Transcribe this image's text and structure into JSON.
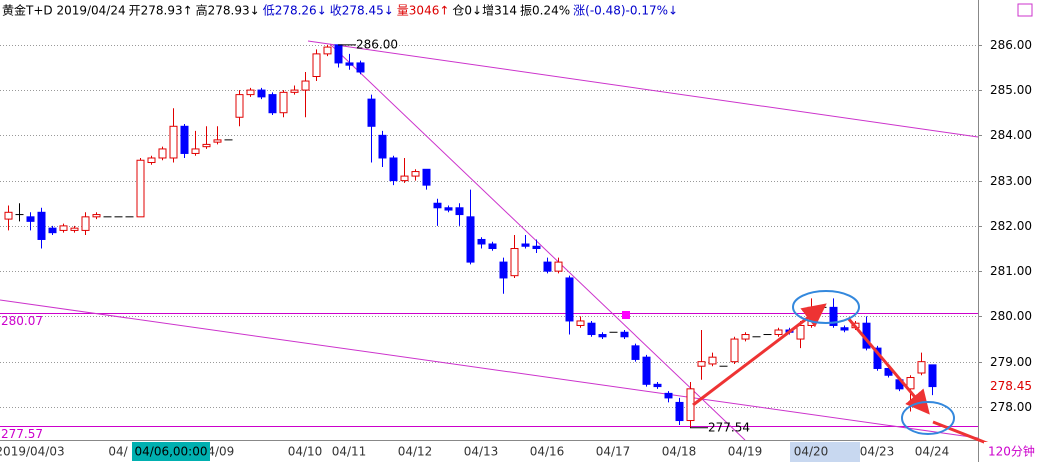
{
  "chart_data": {
    "type": "candlestick",
    "header": [
      {
        "text": "黄金T+D 2019/04/24",
        "color": "#000000"
      },
      {
        "text": "开278.93↑",
        "color": "#000000"
      },
      {
        "text": "高278.93↓",
        "color": "#000000"
      },
      {
        "text": "低278.26↓",
        "color": "#0000cc"
      },
      {
        "text": "收278.45↓",
        "color": "#0000cc"
      },
      {
        "text": "量3046↑",
        "color": "#dd0000"
      },
      {
        "text": "仓0↓增314",
        "color": "#000000"
      },
      {
        "text": "振0.24%",
        "color": "#000000"
      },
      {
        "text": "涨(-0.48)-0.17%↓",
        "color": "#0000cc"
      }
    ],
    "categories": [
      null,
      null,
      "2019/04/03",
      null,
      null,
      null,
      null,
      null,
      null,
      null,
      "04/",
      null,
      null,
      null,
      null,
      null,
      null,
      null,
      null,
      "04/09",
      null,
      null,
      null,
      null,
      null,
      null,
      null,
      "04/10",
      null,
      null,
      null,
      "04/11",
      null,
      null,
      null,
      null,
      null,
      "04/12",
      null,
      null,
      null,
      null,
      null,
      "04/13",
      null,
      null,
      null,
      null,
      null,
      "04/16",
      null,
      null,
      null,
      null,
      null,
      "04/17",
      null,
      null,
      null,
      null,
      null,
      "04/18",
      null,
      null,
      null,
      null,
      null,
      "04/19",
      null,
      null,
      null,
      null,
      null,
      "04/20",
      null,
      null,
      null,
      null,
      null,
      "04/23",
      null,
      null,
      null,
      null,
      "04/24"
    ],
    "open": [
      282.15,
      282.25,
      282.2,
      282.3,
      281.95,
      281.9,
      281.9,
      281.9,
      282.2,
      282.2,
      282.2,
      282.2,
      282.2,
      283.4,
      283.5,
      283.5,
      284.2,
      283.6,
      283.75,
      283.85,
      283.9,
      284.4,
      284.9,
      285.0,
      284.9,
      284.5,
      284.95,
      285.0,
      285.3,
      285.8,
      286.0,
      285.6,
      285.6,
      284.8,
      284.0,
      283.5,
      283.0,
      283.1,
      283.25,
      282.5,
      282.4,
      282.4,
      282.2,
      281.7,
      281.6,
      281.2,
      280.9,
      281.6,
      281.55,
      281.2,
      281.0,
      280.85,
      279.8,
      279.85,
      279.6,
      279.65,
      279.65,
      279.35,
      279.1,
      278.5,
      278.3,
      278.1,
      277.7,
      278.9,
      278.95,
      278.9,
      279.0,
      279.5,
      279.55,
      279.6,
      279.6,
      279.7,
      279.5,
      279.8,
      280.2,
      280.2,
      279.75,
      279.75,
      279.85,
      279.3,
      278.85,
      278.6,
      278.4,
      278.75,
      278.93
    ],
    "high": [
      282.45,
      282.5,
      282.3,
      282.4,
      282.0,
      282.05,
      282.0,
      282.3,
      282.3,
      282.2,
      282.2,
      282.2,
      283.5,
      283.55,
      283.75,
      284.6,
      284.25,
      284.1,
      284.2,
      284.2,
      283.9,
      285.0,
      285.05,
      285.05,
      284.95,
      285.0,
      285.1,
      285.4,
      285.9,
      286.0,
      286.0,
      285.8,
      285.65,
      284.9,
      284.1,
      283.55,
      283.5,
      283.25,
      283.25,
      282.6,
      282.45,
      282.5,
      282.8,
      281.75,
      281.65,
      281.3,
      281.8,
      281.8,
      281.7,
      281.3,
      281.3,
      280.9,
      280.0,
      279.9,
      279.65,
      279.65,
      279.7,
      279.4,
      279.15,
      278.55,
      278.35,
      278.2,
      278.55,
      279.7,
      279.2,
      278.9,
      279.55,
      279.65,
      279.55,
      279.6,
      279.75,
      279.75,
      279.9,
      280.4,
      280.2,
      280.4,
      279.8,
      279.9,
      280.0,
      279.35,
      278.9,
      278.65,
      278.7,
      279.2,
      278.93
    ],
    "low": [
      281.9,
      282.1,
      281.9,
      281.5,
      281.8,
      281.85,
      281.85,
      281.8,
      282.15,
      282.2,
      282.2,
      282.2,
      282.2,
      283.35,
      283.45,
      283.4,
      283.5,
      283.55,
      283.7,
      283.8,
      283.9,
      284.2,
      284.85,
      284.8,
      284.45,
      284.4,
      284.9,
      284.4,
      285.2,
      285.75,
      285.5,
      285.45,
      285.35,
      283.4,
      283.3,
      282.9,
      282.95,
      283.0,
      282.8,
      282.0,
      282.3,
      282.0,
      281.15,
      281.5,
      281.45,
      280.5,
      280.85,
      281.5,
      281.4,
      280.95,
      280.95,
      279.6,
      279.75,
      279.55,
      279.5,
      279.65,
      279.5,
      279.0,
      278.45,
      278.4,
      278.1,
      277.6,
      277.54,
      278.6,
      278.9,
      278.9,
      278.95,
      279.45,
      279.55,
      279.6,
      279.55,
      279.6,
      279.3,
      279.75,
      280.2,
      279.75,
      279.65,
      279.7,
      279.25,
      278.8,
      278.65,
      278.35,
      277.9,
      278.7,
      278.26
    ],
    "close": [
      282.3,
      282.25,
      282.1,
      281.7,
      281.85,
      282.0,
      281.95,
      282.2,
      282.25,
      282.2,
      282.2,
      282.2,
      283.45,
      283.5,
      283.7,
      284.2,
      283.6,
      283.7,
      283.8,
      283.9,
      283.9,
      284.9,
      285.0,
      284.85,
      284.5,
      284.95,
      285.0,
      285.2,
      285.8,
      285.95,
      285.6,
      285.55,
      285.4,
      284.2,
      283.5,
      283.0,
      283.1,
      283.2,
      282.9,
      282.4,
      282.35,
      282.25,
      281.2,
      281.6,
      281.5,
      280.85,
      281.5,
      281.55,
      281.5,
      281.0,
      281.2,
      279.9,
      279.9,
      279.6,
      279.55,
      279.65,
      279.55,
      279.05,
      278.5,
      278.45,
      278.2,
      277.7,
      278.4,
      279.0,
      279.1,
      278.9,
      279.5,
      279.6,
      279.55,
      279.6,
      279.7,
      279.65,
      279.8,
      280.2,
      280.2,
      279.8,
      279.7,
      279.85,
      279.3,
      278.85,
      278.7,
      278.4,
      278.65,
      279.0,
      278.45
    ],
    "up_color": "#e00000",
    "down_color": "#0000ff",
    "flat_color": "#000000",
    "ylim": [
      277.27,
      286.99
    ],
    "yticks": [
      {
        "value": 278,
        "label": "278.00"
      },
      {
        "value": 279,
        "label": "279.00"
      },
      {
        "value": 280,
        "label": "280.00"
      },
      {
        "value": 281,
        "label": "281.00"
      },
      {
        "value": 282,
        "label": "282.00"
      },
      {
        "value": 283,
        "label": "283.00"
      },
      {
        "value": 284,
        "label": "284.00"
      },
      {
        "value": 285,
        "label": "285.00"
      },
      {
        "value": 286,
        "label": "286.00"
      }
    ],
    "grid": true,
    "hlines": [
      280.07,
      277.57
    ],
    "hline_color": "#cc00cc",
    "price_marks": [
      {
        "value": 286,
        "label": "286.00",
        "at": 30
      },
      {
        "value": 277.54,
        "label": "277.54",
        "at": 62
      }
    ],
    "last_price": 278.45,
    "cursor_label": "04/06,00:00",
    "period": "120分钟"
  }
}
